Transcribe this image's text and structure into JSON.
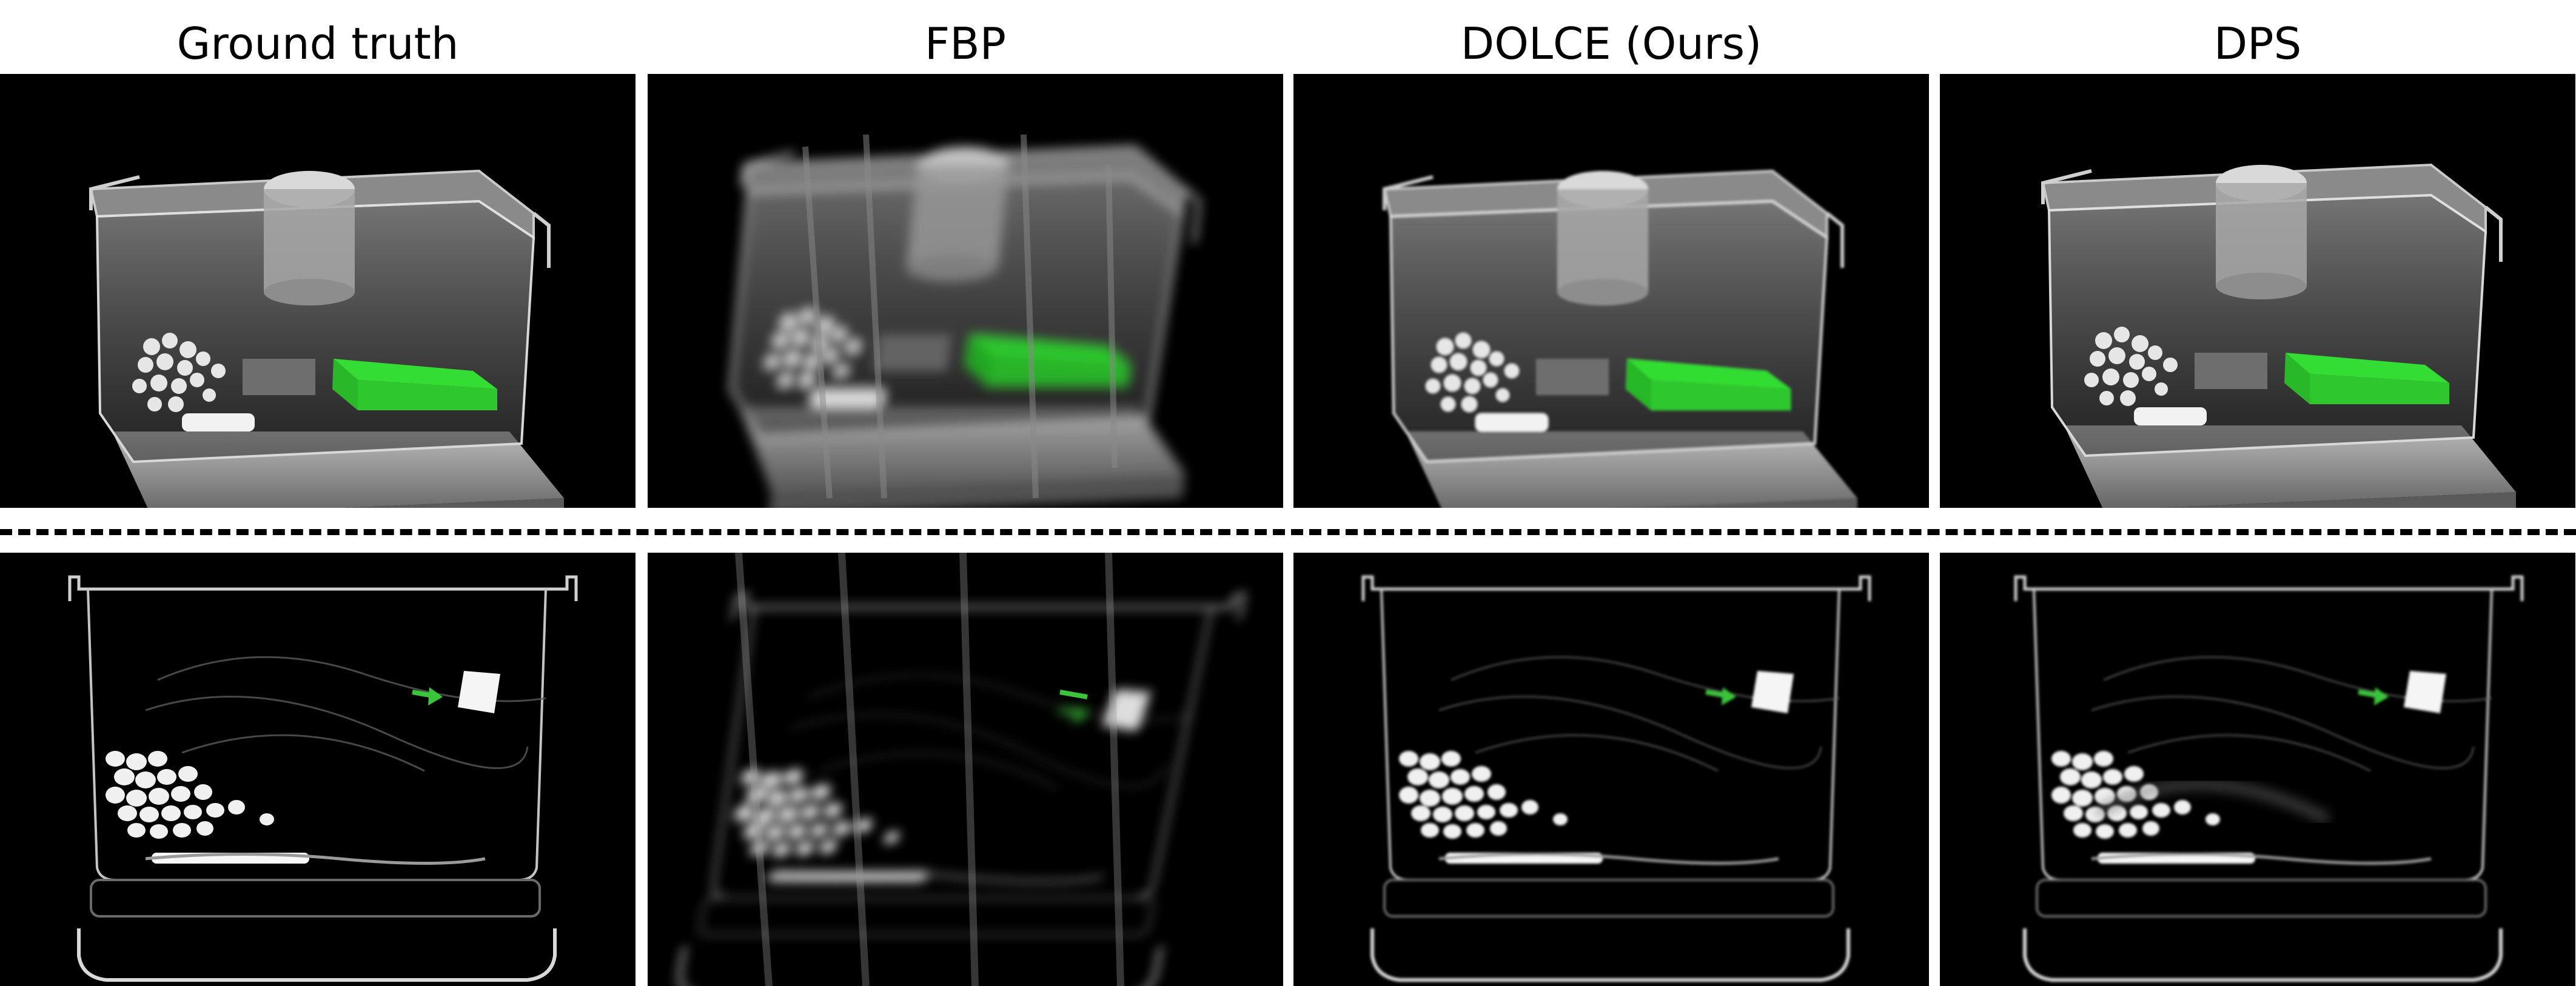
{
  "columns": [
    {
      "title": "Ground truth"
    },
    {
      "title": "FBP"
    },
    {
      "title": "DOLCE (Ours)"
    },
    {
      "title": "DPS"
    }
  ],
  "colors": {
    "background": "#000000",
    "highlight": "#33dd33",
    "arrow": "#3ac43a",
    "structure": "#bcbcbc"
  }
}
